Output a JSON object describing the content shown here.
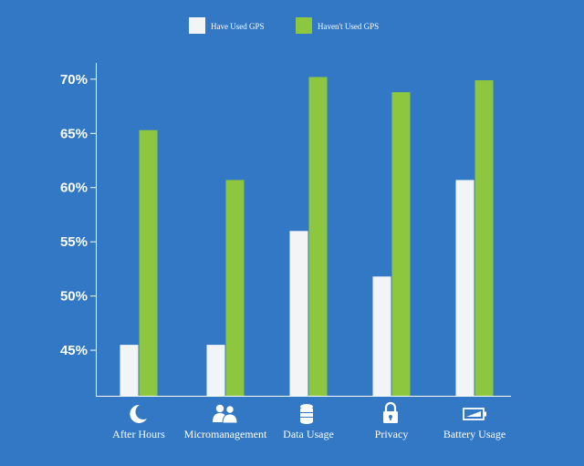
{
  "colors": {
    "background": "#3378c4",
    "have_used": "#f3f4f6",
    "havent_used": "#8dc63f",
    "axis": "#ffffff",
    "text": "#ffffff"
  },
  "legend": {
    "position": "top-center",
    "items": [
      {
        "label": "Have Used GPS",
        "color": "#f3f4f6"
      },
      {
        "label": "Haven't Used GPS",
        "color": "#8dc63f"
      }
    ]
  },
  "chart_data": {
    "type": "bar",
    "title": "",
    "xlabel": "",
    "ylabel": "",
    "ylim": [
      40.8,
      71.5
    ],
    "yticks": [
      45,
      50,
      55,
      60,
      65,
      70
    ],
    "ytick_labels": [
      "45%",
      "50%",
      "55%",
      "60%",
      "65%",
      "70%"
    ],
    "grid": false,
    "categories": [
      "After Hours",
      "Micromanagement",
      "Data Usage",
      "Privacy",
      "Battery Usage"
    ],
    "category_icons": [
      "moon-icon",
      "people-icon",
      "database-icon",
      "lock-icon",
      "battery-icon"
    ],
    "series": [
      {
        "name": "Have Used GPS",
        "color": "#f3f4f6",
        "values": [
          45.5,
          45.5,
          56.0,
          51.8,
          60.7
        ]
      },
      {
        "name": "Haven't Used GPS",
        "color": "#8dc63f",
        "values": [
          65.3,
          60.7,
          70.2,
          68.8,
          69.9
        ]
      }
    ]
  }
}
